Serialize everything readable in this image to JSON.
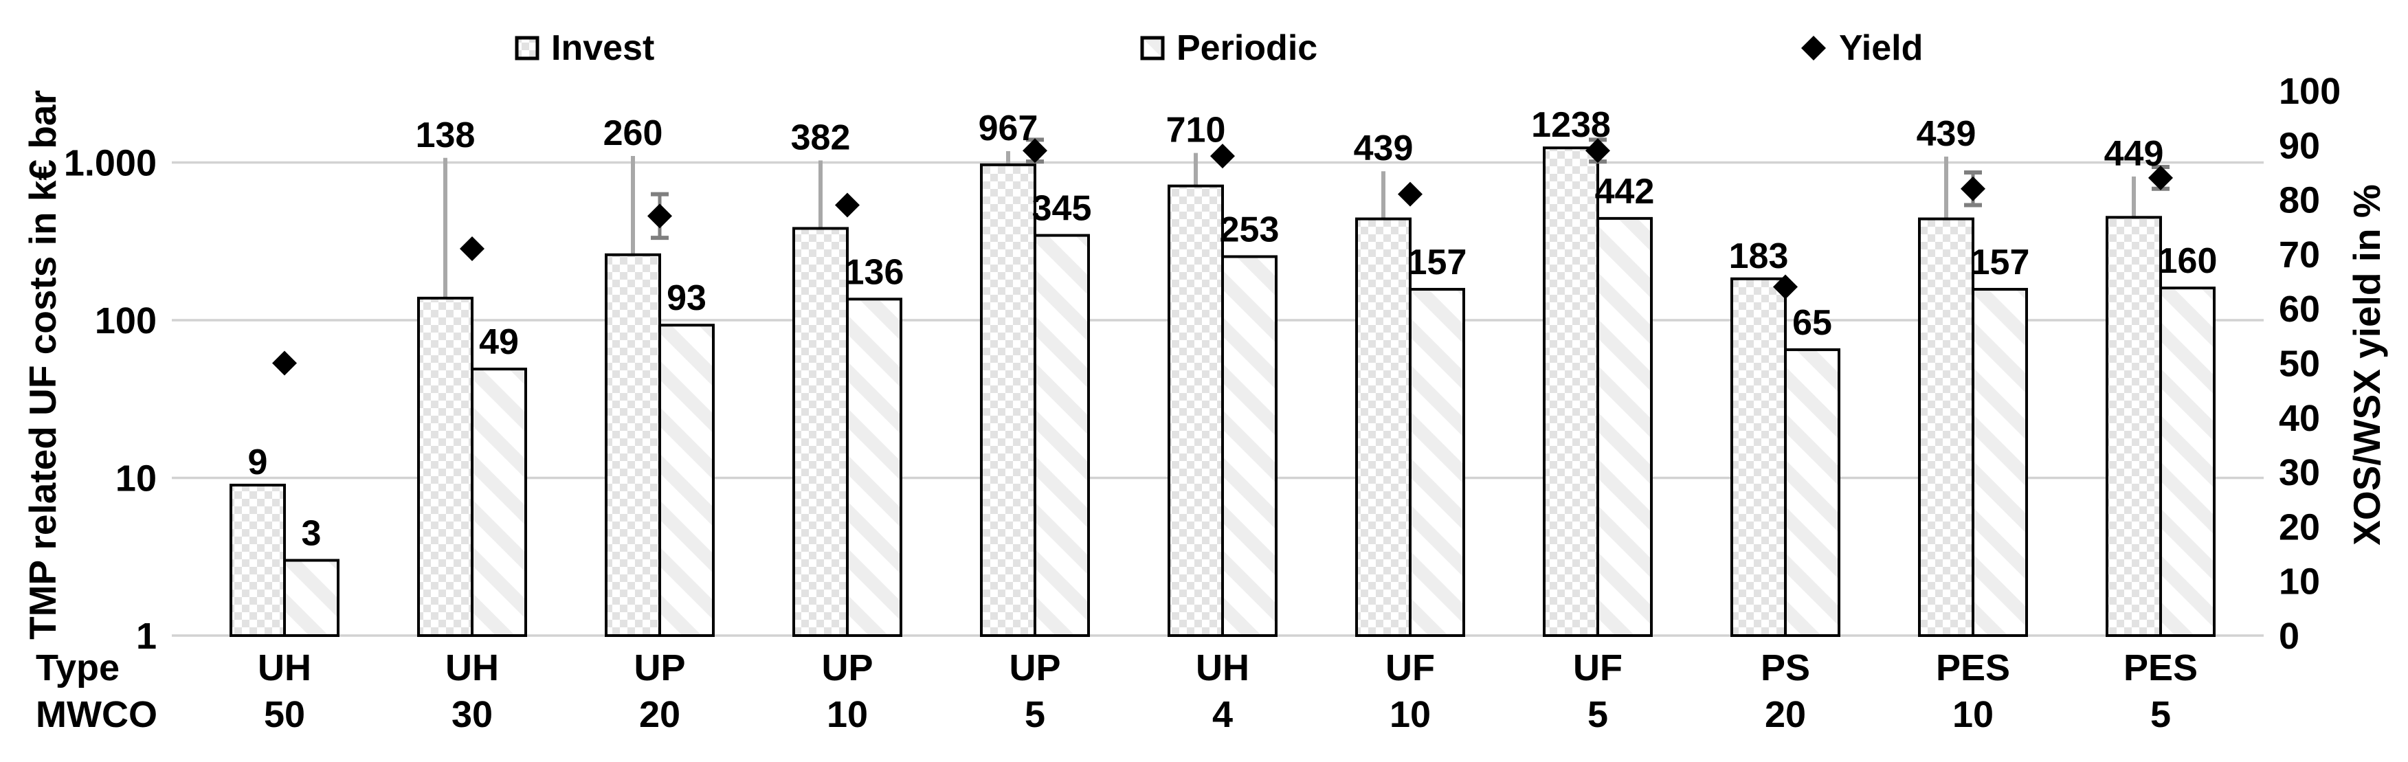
{
  "legend": {
    "items": [
      {
        "label": "Invest",
        "swatch": "invest-pattern"
      },
      {
        "label": "Periodic",
        "swatch": "periodic-pattern"
      },
      {
        "label": "Yield",
        "swatch": "black-diamond"
      }
    ]
  },
  "axes": {
    "left": {
      "title": "TMP related UF costs in k€ bar",
      "scale": "log",
      "tick_labels": [
        "1.000",
        "100",
        "10",
        "1"
      ],
      "tick_values": [
        1000,
        100,
        10,
        1
      ]
    },
    "right": {
      "title": "XOS/WSX yield in %",
      "tick_labels": [
        "100",
        "90",
        "80",
        "70",
        "60",
        "50",
        "40",
        "30",
        "20",
        "10",
        "0"
      ],
      "tick_values": [
        100,
        90,
        80,
        70,
        60,
        50,
        40,
        30,
        20,
        10,
        0
      ]
    },
    "x": {
      "row_headers": [
        "Type",
        "MWCO"
      ]
    }
  },
  "chart_data": {
    "type": "bar",
    "title": "",
    "left_axis_label": "TMP related UF costs in k€ bar",
    "right_axis_label": "XOS/WSX yield in %",
    "left_axis": {
      "scale": "log",
      "min": 1,
      "max": 3000,
      "gridlines": [
        1,
        10,
        100,
        1000
      ]
    },
    "right_axis": {
      "scale": "linear",
      "min": 0,
      "max": 100,
      "tick_step": 10
    },
    "legend_position": "top",
    "categories_type": [
      "UH",
      "UH",
      "UP",
      "UP",
      "UP",
      "UH",
      "UF",
      "UF",
      "PS",
      "PES",
      "PES"
    ],
    "categories_mwco": [
      "50",
      "30",
      "20",
      "10",
      "5",
      "4",
      "10",
      "5",
      "20",
      "10",
      "5"
    ],
    "series": [
      {
        "name": "Invest",
        "kind": "bar",
        "axis": "left",
        "pattern": "checker",
        "values": [
          9,
          138,
          260,
          382,
          967,
          710,
          439,
          1238,
          183,
          439,
          449
        ],
        "error_bar_top": [
          null,
          1070,
          1100,
          1030,
          1180,
          1150,
          880,
          null,
          null,
          1090,
          815
        ]
      },
      {
        "name": "Periodic",
        "kind": "bar",
        "axis": "left",
        "pattern": "diagonal-stripe",
        "values": [
          3,
          49,
          93,
          136,
          345,
          253,
          157,
          442,
          65,
          157,
          160
        ]
      },
      {
        "name": "Yield",
        "kind": "scatter-diamond",
        "axis": "right",
        "values": [
          50,
          71,
          77,
          79,
          89,
          88,
          81,
          89,
          64,
          82,
          84
        ],
        "error_pm": [
          null,
          null,
          4,
          null,
          2,
          null,
          null,
          2,
          null,
          3,
          2
        ]
      }
    ]
  },
  "colors": {
    "background": "#ffffff",
    "text": "#000000",
    "grid": "#d2d2d2",
    "bar_border": "#000000",
    "invest_pattern_fill": "#e2e2e2",
    "periodic_pattern_fill": "#eeeeee",
    "invest_error_bar": "#a8a8a8",
    "yield_error_bar": "#7f7f7f",
    "marker": "#000000"
  }
}
